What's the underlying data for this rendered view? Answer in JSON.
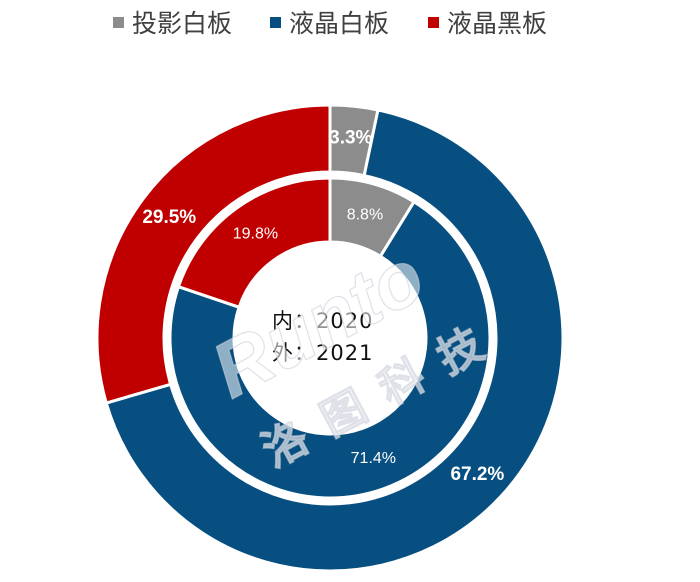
{
  "chart_data": {
    "type": "pie",
    "legend": [
      "投影白板",
      "液晶白板",
      "液晶黑板"
    ],
    "legend_position": "top",
    "colors": [
      "#8c8c8c",
      "#074f80",
      "#c00000"
    ],
    "rings": [
      {
        "name": "2020",
        "ring": "inner",
        "values": [
          8.8,
          71.4,
          19.8
        ],
        "labels": [
          "8.8%",
          "71.4%",
          "19.8%"
        ]
      },
      {
        "name": "2021",
        "ring": "outer",
        "values": [
          3.3,
          67.2,
          29.5
        ],
        "labels": [
          "3.3%",
          "67.2%",
          "29.5%"
        ]
      }
    ]
  },
  "center": {
    "line1": "内：2020",
    "line2": "外：2021"
  },
  "watermark": {
    "latin": "Runto",
    "cjk": "洛图科技"
  }
}
